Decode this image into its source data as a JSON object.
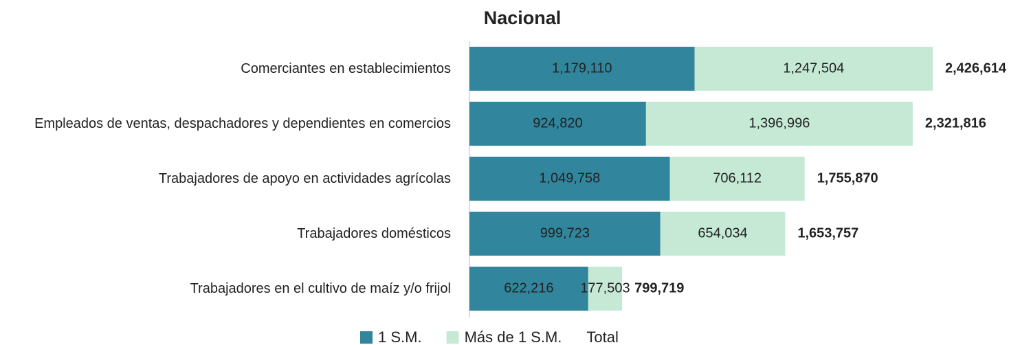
{
  "chart_data": {
    "type": "stacked-bar",
    "orientation": "horizontal",
    "title": "Nacional",
    "categories": [
      "Comerciantes en establecimientos",
      "Empleados de ventas, despachadores y dependientes en comercios",
      "Trabajadores de apoyo en actividades agrícolas",
      "Trabajadores domésticos",
      "Trabajadores en el cultivo de maíz y/o frijol"
    ],
    "series": [
      {
        "name": "1 S.M.",
        "color": "#31859c",
        "values": [
          1179110,
          924820,
          1049758,
          999723,
          622216
        ],
        "value_labels": [
          "1,179,110",
          "924,820",
          "1,049,758",
          "999,723",
          "622,216"
        ]
      },
      {
        "name": "Más de 1 S.M.",
        "color": "#c6e9d6",
        "values": [
          1247504,
          1396996,
          706112,
          654034,
          177503
        ],
        "value_labels": [
          "1,247,504",
          "1,396,996",
          "706,112",
          "654,034",
          "177,503"
        ]
      },
      {
        "name": "Total",
        "values": [
          2426614,
          2321816,
          1755870,
          1653757,
          799719
        ],
        "value_labels": [
          "2,426,614",
          "2,321,816",
          "1,755,870",
          "1,653,757",
          "799,719"
        ]
      }
    ]
  }
}
